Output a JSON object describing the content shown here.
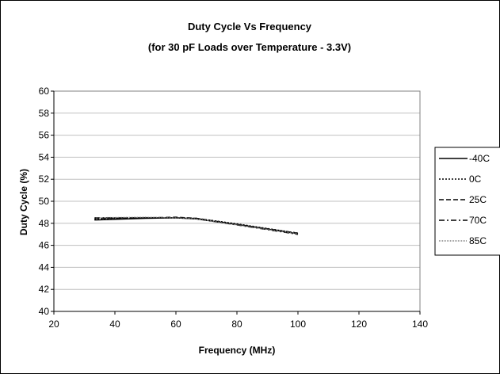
{
  "chart_data": {
    "type": "line",
    "title": "Duty Cycle Vs Frequency",
    "subtitle": "(for 30 pF Loads over Temperature - 3.3V)",
    "xlabel": "Frequency (MHz)",
    "ylabel": "Duty Cycle (%)",
    "xlim": [
      20,
      140
    ],
    "ylim": [
      40,
      60
    ],
    "xticks": [
      20,
      40,
      60,
      80,
      100,
      120,
      140
    ],
    "yticks": [
      40,
      42,
      44,
      46,
      48,
      50,
      52,
      54,
      56,
      58,
      60
    ],
    "grid": "horizontal",
    "legend_position": "right",
    "series": [
      {
        "name": "-40C",
        "style": "solid",
        "color": "#000000",
        "x": [
          33.3,
          50,
          60,
          66.7,
          80,
          100
        ],
        "y": [
          48.3,
          48.45,
          48.5,
          48.4,
          47.9,
          47.05
        ]
      },
      {
        "name": "0C",
        "style": "dotted",
        "color": "#000000",
        "x": [
          33.3,
          50,
          60,
          66.7,
          80,
          100
        ],
        "y": [
          48.4,
          48.5,
          48.5,
          48.45,
          47.95,
          47.1
        ]
      },
      {
        "name": "25C",
        "style": "dashed",
        "color": "#000000",
        "x": [
          33.3,
          50,
          60,
          66.7,
          80,
          100
        ],
        "y": [
          48.45,
          48.5,
          48.55,
          48.45,
          47.9,
          47.1
        ]
      },
      {
        "name": "70C",
        "style": "dashdot",
        "color": "#000000",
        "x": [
          33.3,
          50,
          60,
          66.7,
          80,
          100
        ],
        "y": [
          48.5,
          48.5,
          48.5,
          48.4,
          47.85,
          47.0
        ]
      },
      {
        "name": "85C",
        "style": "fine-dot",
        "color": "#808080",
        "x": [
          33.3,
          50,
          60,
          66.7,
          80,
          100
        ],
        "y": [
          48.5,
          48.55,
          48.5,
          48.4,
          47.85,
          47.05
        ]
      }
    ]
  }
}
